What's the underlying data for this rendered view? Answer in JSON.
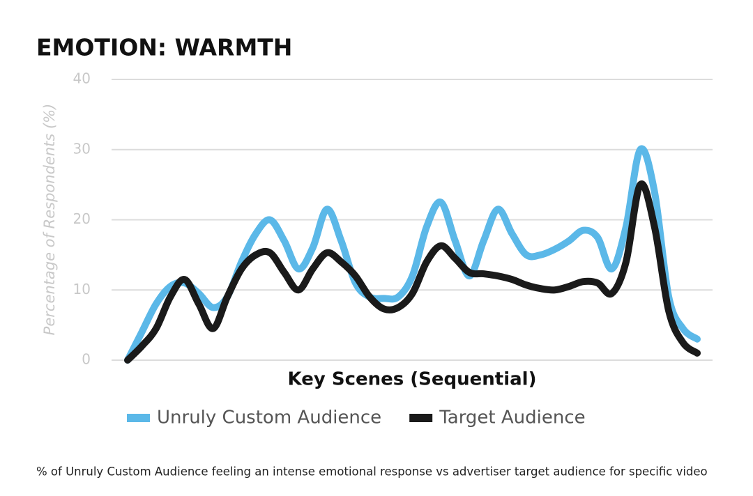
{
  "chart_data": {
    "type": "line",
    "title": "EMOTION: WARMTH",
    "y_label": "Percentage of Respondents (%)",
    "x_label": "Key Scenes (Sequential)",
    "note": "% of Unruly Custom Audience feeling an intense emotional response vs advertiser target audience for specific video",
    "categories": [
      null,
      null,
      null,
      null,
      null,
      null,
      null,
      null,
      null,
      null,
      null,
      null,
      null,
      null,
      null,
      null,
      null,
      null,
      null,
      null,
      null,
      null,
      null,
      null,
      null,
      null,
      null,
      null,
      null,
      null,
      null,
      null,
      null,
      null,
      null,
      null,
      null,
      null,
      null,
      null,
      null
    ],
    "series": [
      {
        "name": "Unruly Custom Audience",
        "color": "#5bb8e8",
        "values": [
          0,
          4,
          8,
          10.5,
          11,
          9.5,
          7.5,
          9,
          14,
          18,
          20,
          17,
          13,
          16,
          21.5,
          17,
          11,
          9,
          8.8,
          9,
          12,
          19,
          22.5,
          17,
          12,
          17,
          21.5,
          18,
          15,
          15,
          15.8,
          17,
          18.5,
          17.5,
          13,
          19,
          30,
          24,
          9,
          4.5,
          3
        ]
      },
      {
        "name": "Target Audience",
        "color": "#1a1a1a",
        "values": [
          0,
          2,
          4.5,
          9,
          11.5,
          8,
          4.5,
          9,
          13,
          15,
          15.3,
          12.5,
          10,
          13,
          15.3,
          14,
          12,
          9,
          7.3,
          7.5,
          9.5,
          14,
          16.3,
          14.5,
          12.5,
          12.3,
          12,
          11.5,
          10.7,
          10.2,
          10,
          10.5,
          11.2,
          11,
          9.5,
          14,
          25,
          19,
          7,
          2.5,
          1
        ]
      }
    ],
    "ylim": [
      0,
      40
    ],
    "yticks": [
      0,
      10,
      20,
      30,
      40
    ],
    "grid": true,
    "legend": "bottom"
  }
}
